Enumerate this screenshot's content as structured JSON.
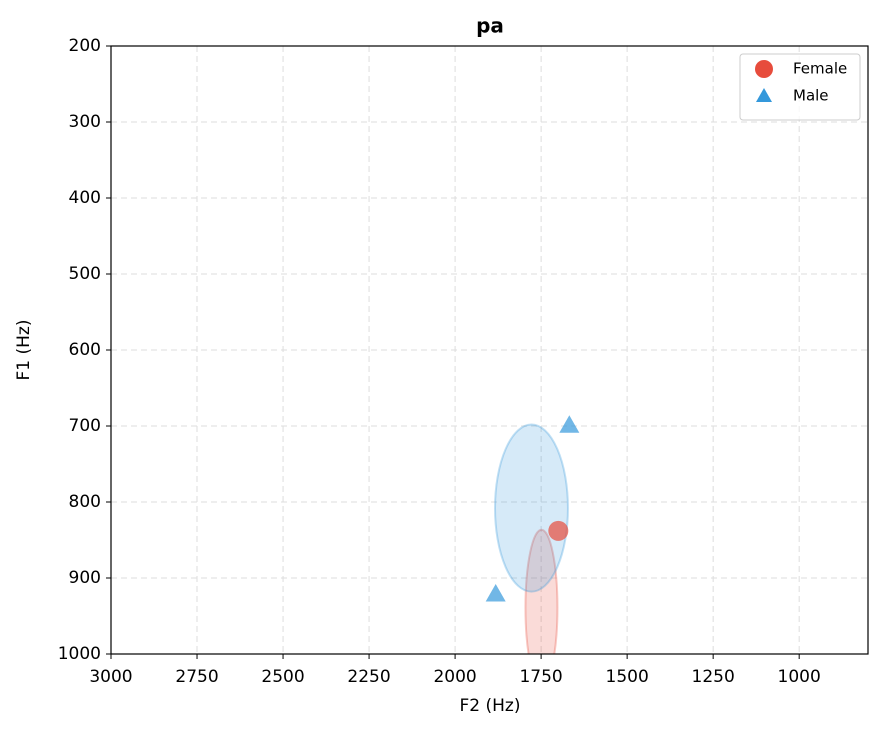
{
  "chart_data": {
    "type": "scatter",
    "title": "pa",
    "x_label": "F2 (Hz)",
    "y_label": "F1 (Hz)",
    "xlim": [
      3000,
      800
    ],
    "ylim": [
      1000,
      200
    ],
    "xticks": [
      3000,
      2750,
      2500,
      2250,
      2000,
      1750,
      1500,
      1250,
      1000
    ],
    "yticks": [
      200,
      300,
      400,
      500,
      600,
      700,
      800,
      900,
      1000
    ],
    "grid": true,
    "legend": "upper right",
    "series": [
      {
        "name": "Female",
        "color": "#e74c3c",
        "marker": "circle",
        "x": [
          1700
        ],
        "y": [
          838
        ],
        "ellipse_center": [
          1749,
          939
        ],
        "ellipse_size": [
          93,
          205
        ]
      },
      {
        "name": "Male",
        "color": "#3498db",
        "marker": "triangle",
        "x": [
          1668,
          1882
        ],
        "y": [
          699,
          921
        ],
        "ellipse_center": [
          1778,
          808
        ],
        "ellipse_size": [
          212,
          220
        ]
      }
    ]
  }
}
